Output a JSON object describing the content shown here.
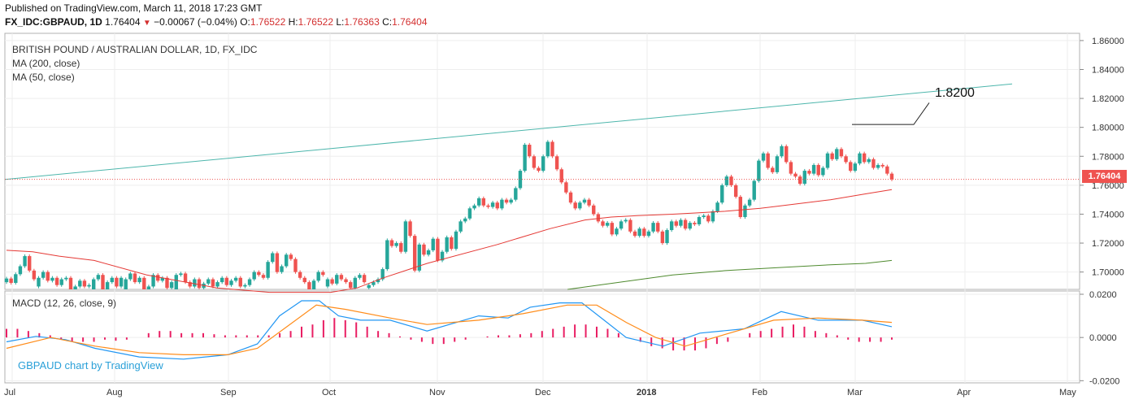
{
  "header": {
    "published": "Published on TradingView.com, March 11, 2018 17:23 GMT",
    "symbol": "FX_IDC:GBPAUD, 1D",
    "last": "1.76404",
    "change": "−0.00067 (−0.04%)",
    "open_label": "O:",
    "open": "1.76522",
    "high_label": "H:",
    "high": "1.76522",
    "low_label": "L:",
    "low": "1.76363",
    "close_label": "C:",
    "close": "1.76404"
  },
  "legend": {
    "title": "BRITISH POUND / AUSTRALIAN DOLLAR, 1D, FX_IDC",
    "ma200": "MA (200, close)",
    "ma50": "MA (50, close)",
    "macd": "MACD (12, 26, close, 9)"
  },
  "watermark": "GBPAUD chart by TradingView",
  "annotation": "1.8200",
  "current_price_tag": "1.76404",
  "colors": {
    "up": "#26a69a",
    "down": "#ef5350",
    "ma50": "#e53935",
    "ma200": "#4e8a2e",
    "trend": "#4db6ac",
    "macd": "#2196f3",
    "signal": "#ff8c1a",
    "hist": "#e91e63"
  },
  "chart_data": {
    "type": "candlestick",
    "price_axis_ticks": [
      "1.86000",
      "1.84000",
      "1.82000",
      "1.80000",
      "1.78000",
      "1.76000",
      "1.74000",
      "1.72000",
      "1.70000"
    ],
    "macd_axis_ticks": [
      "0.0200",
      "0.0000",
      "-0.0200"
    ],
    "time_axis_labels": [
      "Jul",
      "Aug",
      "Sep",
      "Oct",
      "Nov",
      "Dec",
      "2018",
      "Feb",
      "Mar",
      "Apr",
      "May"
    ],
    "ylim": [
      1.688,
      1.865
    ],
    "macd_ylim": [
      -0.021,
      0.0215
    ],
    "candles": [
      [
        1.693,
        1.6955
      ],
      [
        1.6955,
        1.6925
      ],
      [
        1.6925,
        1.6985
      ],
      [
        1.6985,
        1.704
      ],
      [
        1.704,
        1.711
      ],
      [
        1.711,
        1.701
      ],
      [
        1.701,
        1.695
      ],
      [
        1.69,
        1.696
      ],
      [
        1.696,
        1.7
      ],
      [
        1.7,
        1.694
      ],
      [
        1.694,
        1.696
      ],
      [
        1.696,
        1.691
      ],
      [
        1.691,
        1.695
      ],
      [
        1.695,
        1.696
      ],
      [
        1.696,
        1.688
      ],
      [
        1.688,
        1.69
      ],
      [
        1.69,
        1.694
      ],
      [
        1.694,
        1.69
      ],
      [
        1.69,
        1.691
      ],
      [
        1.688,
        1.695
      ],
      [
        1.695,
        1.698
      ],
      [
        1.698,
        1.688
      ],
      [
        1.688,
        1.693
      ],
      [
        1.693,
        1.696
      ],
      [
        1.696,
        1.69
      ],
      [
        1.69,
        1.696
      ],
      [
        1.688,
        1.695
      ],
      [
        1.695,
        1.699
      ],
      [
        1.699,
        1.693
      ],
      [
        1.693,
        1.696
      ],
      [
        1.696,
        1.688
      ],
      [
        1.688,
        1.69
      ],
      [
        1.69,
        1.698
      ],
      [
        1.698,
        1.694
      ],
      [
        1.694,
        1.696
      ],
      [
        1.696,
        1.689
      ],
      [
        1.689,
        1.693
      ],
      [
        1.688,
        1.698
      ],
      [
        1.698,
        1.699
      ],
      [
        1.699,
        1.693
      ],
      [
        1.693,
        1.69
      ],
      [
        1.69,
        1.695
      ],
      [
        1.695,
        1.689
      ],
      [
        1.689,
        1.692
      ],
      [
        1.692,
        1.695
      ],
      [
        1.695,
        1.69
      ],
      [
        1.69,
        1.693
      ],
      [
        1.693,
        1.696
      ],
      [
        1.696,
        1.691
      ],
      [
        1.691,
        1.694
      ],
      [
        1.694,
        1.696
      ],
      [
        1.696,
        1.69
      ],
      [
        1.69,
        1.691
      ],
      [
        1.691,
        1.695
      ],
      [
        1.695,
        1.7
      ],
      [
        1.7,
        1.698
      ],
      [
        1.698,
        1.696
      ],
      [
        1.696,
        1.707
      ],
      [
        1.707,
        1.713
      ],
      [
        1.713,
        1.7
      ],
      [
        1.7,
        1.704
      ],
      [
        1.704,
        1.712
      ],
      [
        1.712,
        1.709
      ],
      [
        1.709,
        1.7
      ],
      [
        1.7,
        1.696
      ],
      [
        1.696,
        1.693
      ],
      [
        1.693,
        1.688
      ],
      [
        1.688,
        1.694
      ],
      [
        1.694,
        1.7
      ],
      [
        1.7,
        1.698
      ],
      [
        1.69,
        1.695
      ],
      [
        1.695,
        1.692
      ],
      [
        1.692,
        1.698
      ],
      [
        1.698,
        1.695
      ],
      [
        1.695,
        1.693
      ],
      [
        1.693,
        1.689
      ],
      [
        1.689,
        1.696
      ],
      [
        1.696,
        1.698
      ],
      [
        1.698,
        1.693
      ],
      [
        1.689,
        1.691
      ],
      [
        1.691,
        1.693
      ],
      [
        1.693,
        1.695
      ],
      [
        1.695,
        1.702
      ],
      [
        1.702,
        1.722
      ],
      [
        1.722,
        1.718
      ],
      [
        1.718,
        1.72
      ],
      [
        1.72,
        1.714
      ],
      [
        1.714,
        1.735
      ],
      [
        1.735,
        1.725
      ],
      [
        1.725,
        1.701
      ],
      [
        1.701,
        1.719
      ],
      [
        1.719,
        1.712
      ],
      [
        1.712,
        1.715
      ],
      [
        1.715,
        1.723
      ],
      [
        1.723,
        1.708
      ],
      [
        1.708,
        1.714
      ],
      [
        1.714,
        1.724
      ],
      [
        1.724,
        1.716
      ],
      [
        1.716,
        1.728
      ],
      [
        1.728,
        1.735
      ],
      [
        1.735,
        1.737
      ],
      [
        1.737,
        1.744
      ],
      [
        1.744,
        1.746
      ],
      [
        1.746,
        1.751
      ],
      [
        1.751,
        1.746
      ],
      [
        1.746,
        1.745
      ],
      [
        1.745,
        1.748
      ],
      [
        1.748,
        1.744
      ],
      [
        1.744,
        1.75
      ],
      [
        1.75,
        1.748
      ],
      [
        1.748,
        1.75
      ],
      [
        1.75,
        1.758
      ],
      [
        1.758,
        1.77
      ],
      [
        1.77,
        1.788
      ],
      [
        1.788,
        1.78
      ],
      [
        1.78,
        1.772
      ],
      [
        1.772,
        1.77
      ],
      [
        1.77,
        1.78
      ],
      [
        1.78,
        1.79
      ],
      [
        1.79,
        1.78
      ],
      [
        1.78,
        1.771
      ],
      [
        1.771,
        1.762
      ],
      [
        1.762,
        1.755
      ],
      [
        1.755,
        1.748
      ],
      [
        1.748,
        1.744
      ],
      [
        1.744,
        1.748
      ],
      [
        1.748,
        1.75
      ],
      [
        1.75,
        1.746
      ],
      [
        1.746,
        1.74
      ],
      [
        1.74,
        1.735
      ],
      [
        1.735,
        1.732
      ],
      [
        1.732,
        1.734
      ],
      [
        1.734,
        1.726
      ],
      [
        1.726,
        1.73
      ],
      [
        1.73,
        1.735
      ],
      [
        1.735,
        1.736
      ],
      [
        1.736,
        1.728
      ],
      [
        1.728,
        1.725
      ],
      [
        1.725,
        1.73
      ],
      [
        1.73,
        1.725
      ],
      [
        1.725,
        1.728
      ],
      [
        1.728,
        1.734
      ],
      [
        1.734,
        1.728
      ],
      [
        1.728,
        1.72
      ],
      [
        1.72,
        1.729
      ],
      [
        1.729,
        1.735
      ],
      [
        1.735,
        1.732
      ],
      [
        1.732,
        1.736
      ],
      [
        1.736,
        1.73
      ],
      [
        1.73,
        1.734
      ],
      [
        1.734,
        1.733
      ],
      [
        1.733,
        1.738
      ],
      [
        1.738,
        1.739
      ],
      [
        1.739,
        1.735
      ],
      [
        1.735,
        1.742
      ],
      [
        1.742,
        1.748
      ],
      [
        1.748,
        1.76
      ],
      [
        1.76,
        1.766
      ],
      [
        1.766,
        1.76
      ],
      [
        1.76,
        1.752
      ],
      [
        1.752,
        1.738
      ],
      [
        1.738,
        1.746
      ],
      [
        1.746,
        1.75
      ],
      [
        1.75,
        1.763
      ],
      [
        1.763,
        1.777
      ],
      [
        1.777,
        1.782
      ],
      [
        1.782,
        1.772
      ],
      [
        1.772,
        1.769
      ],
      [
        1.769,
        1.78
      ],
      [
        1.78,
        1.787
      ],
      [
        1.787,
        1.776
      ],
      [
        1.776,
        1.768
      ],
      [
        1.768,
        1.766
      ],
      [
        1.766,
        1.761
      ],
      [
        1.761,
        1.77
      ],
      [
        1.77,
        1.768
      ],
      [
        1.768,
        1.774
      ],
      [
        1.774,
        1.767
      ],
      [
        1.767,
        1.772
      ],
      [
        1.772,
        1.782
      ],
      [
        1.782,
        1.778
      ],
      [
        1.778,
        1.785
      ],
      [
        1.785,
        1.78
      ],
      [
        1.78,
        1.776
      ],
      [
        1.776,
        1.77
      ],
      [
        1.77,
        1.775
      ],
      [
        1.775,
        1.782
      ],
      [
        1.782,
        1.776
      ],
      [
        1.776,
        1.778
      ],
      [
        1.778,
        1.772
      ],
      [
        1.772,
        1.774
      ],
      [
        1.774,
        1.773
      ],
      [
        1.773,
        1.768
      ],
      [
        1.768,
        1.764
      ]
    ],
    "ma50": [
      [
        0,
        1.715
      ],
      [
        15,
        1.714
      ],
      [
        30,
        1.711
      ],
      [
        50,
        1.708
      ],
      [
        80,
        1.698
      ],
      [
        120,
        1.689
      ],
      [
        150,
        1.686
      ],
      [
        185,
        1.686
      ],
      [
        200,
        1.689
      ],
      [
        215,
        1.696
      ],
      [
        240,
        1.706
      ],
      [
        280,
        1.719
      ],
      [
        310,
        1.73
      ],
      [
        330,
        1.736
      ],
      [
        345,
        1.738
      ],
      [
        360,
        1.739
      ],
      [
        380,
        1.74
      ],
      [
        395,
        1.741
      ],
      [
        410,
        1.742
      ],
      [
        430,
        1.744
      ],
      [
        450,
        1.747
      ],
      [
        470,
        1.75
      ],
      [
        490,
        1.754
      ],
      [
        505,
        1.757
      ]
    ],
    "ma200": [
      [
        320,
        1.688
      ],
      [
        350,
        1.693
      ],
      [
        380,
        1.698
      ],
      [
        410,
        1.701
      ],
      [
        440,
        1.703
      ],
      [
        470,
        1.705
      ],
      [
        490,
        1.706
      ],
      [
        505,
        1.708
      ]
    ],
    "trend_line": [
      [
        0,
        1.764
      ],
      [
        580,
        1.83
      ]
    ],
    "annotation_line": [
      [
        1.802
      ],
      [
        1.802
      ],
      [
        1.817
      ]
    ],
    "macd": [
      [
        0,
        -0.002
      ],
      [
        20,
        0.0005
      ],
      [
        40,
        -0.001
      ],
      [
        60,
        -0.005
      ],
      [
        90,
        -0.009
      ],
      [
        120,
        -0.01
      ],
      [
        150,
        -0.008
      ],
      [
        170,
        -0.003
      ],
      [
        185,
        0.01
      ],
      [
        200,
        0.017
      ],
      [
        212,
        0.017
      ],
      [
        225,
        0.01
      ],
      [
        240,
        0.008
      ],
      [
        260,
        0.008
      ],
      [
        285,
        0.003
      ],
      [
        320,
        0.01
      ],
      [
        340,
        0.009
      ],
      [
        355,
        0.014
      ],
      [
        375,
        0.016
      ],
      [
        390,
        0.016
      ],
      [
        405,
        0.008
      ],
      [
        420,
        0.0
      ],
      [
        445,
        -0.004
      ],
      [
        470,
        0.002
      ],
      [
        500,
        0.004
      ],
      [
        525,
        0.012
      ],
      [
        550,
        0.008
      ],
      [
        580,
        0.008
      ],
      [
        600,
        0.005
      ]
    ],
    "signal": [
      [
        0,
        -0.005
      ],
      [
        30,
        0.0
      ],
      [
        60,
        -0.004
      ],
      [
        90,
        -0.007
      ],
      [
        120,
        -0.008
      ],
      [
        150,
        -0.008
      ],
      [
        170,
        -0.005
      ],
      [
        190,
        0.005
      ],
      [
        210,
        0.015
      ],
      [
        230,
        0.013
      ],
      [
        260,
        0.009
      ],
      [
        285,
        0.006
      ],
      [
        320,
        0.008
      ],
      [
        350,
        0.011
      ],
      [
        380,
        0.015
      ],
      [
        400,
        0.015
      ],
      [
        420,
        0.007
      ],
      [
        440,
        0.0
      ],
      [
        460,
        -0.004
      ],
      [
        490,
        0.002
      ],
      [
        520,
        0.008
      ],
      [
        550,
        0.009
      ],
      [
        580,
        0.008
      ],
      [
        600,
        0.007
      ]
    ],
    "macd_hist": [
      0.004,
      0.004,
      0.003,
      0.002,
      0.001,
      -0.001,
      -0.002,
      -0.002,
      -0.002,
      -0.001,
      -0.0015,
      -0.001,
      0.0,
      0.002,
      0.003,
      0.003,
      0.002,
      0.002,
      0.002,
      0.0015,
      0.001,
      0.001,
      0.001,
      0.001,
      0.001,
      0.002,
      0.003,
      0.005,
      0.006,
      0.008,
      0.009,
      0.008,
      0.007,
      0.005,
      0.003,
      0.002,
      0.0005,
      -0.001,
      -0.002,
      -0.003,
      -0.003,
      -0.002,
      -0.001,
      0.0,
      0.0005,
      0.001,
      0.001,
      0.0015,
      0.002,
      0.003,
      0.004,
      0.005,
      0.006,
      0.006,
      0.005,
      0.004,
      0.002,
      0.0,
      -0.002,
      -0.004,
      -0.005,
      -0.006,
      -0.006,
      -0.006,
      -0.005,
      -0.003,
      -0.002,
      0.0,
      0.002,
      0.003,
      0.004,
      0.005,
      0.006,
      0.005,
      0.003,
      0.002,
      0.001,
      -0.001,
      -0.002,
      -0.002,
      -0.002,
      -0.001
    ]
  }
}
